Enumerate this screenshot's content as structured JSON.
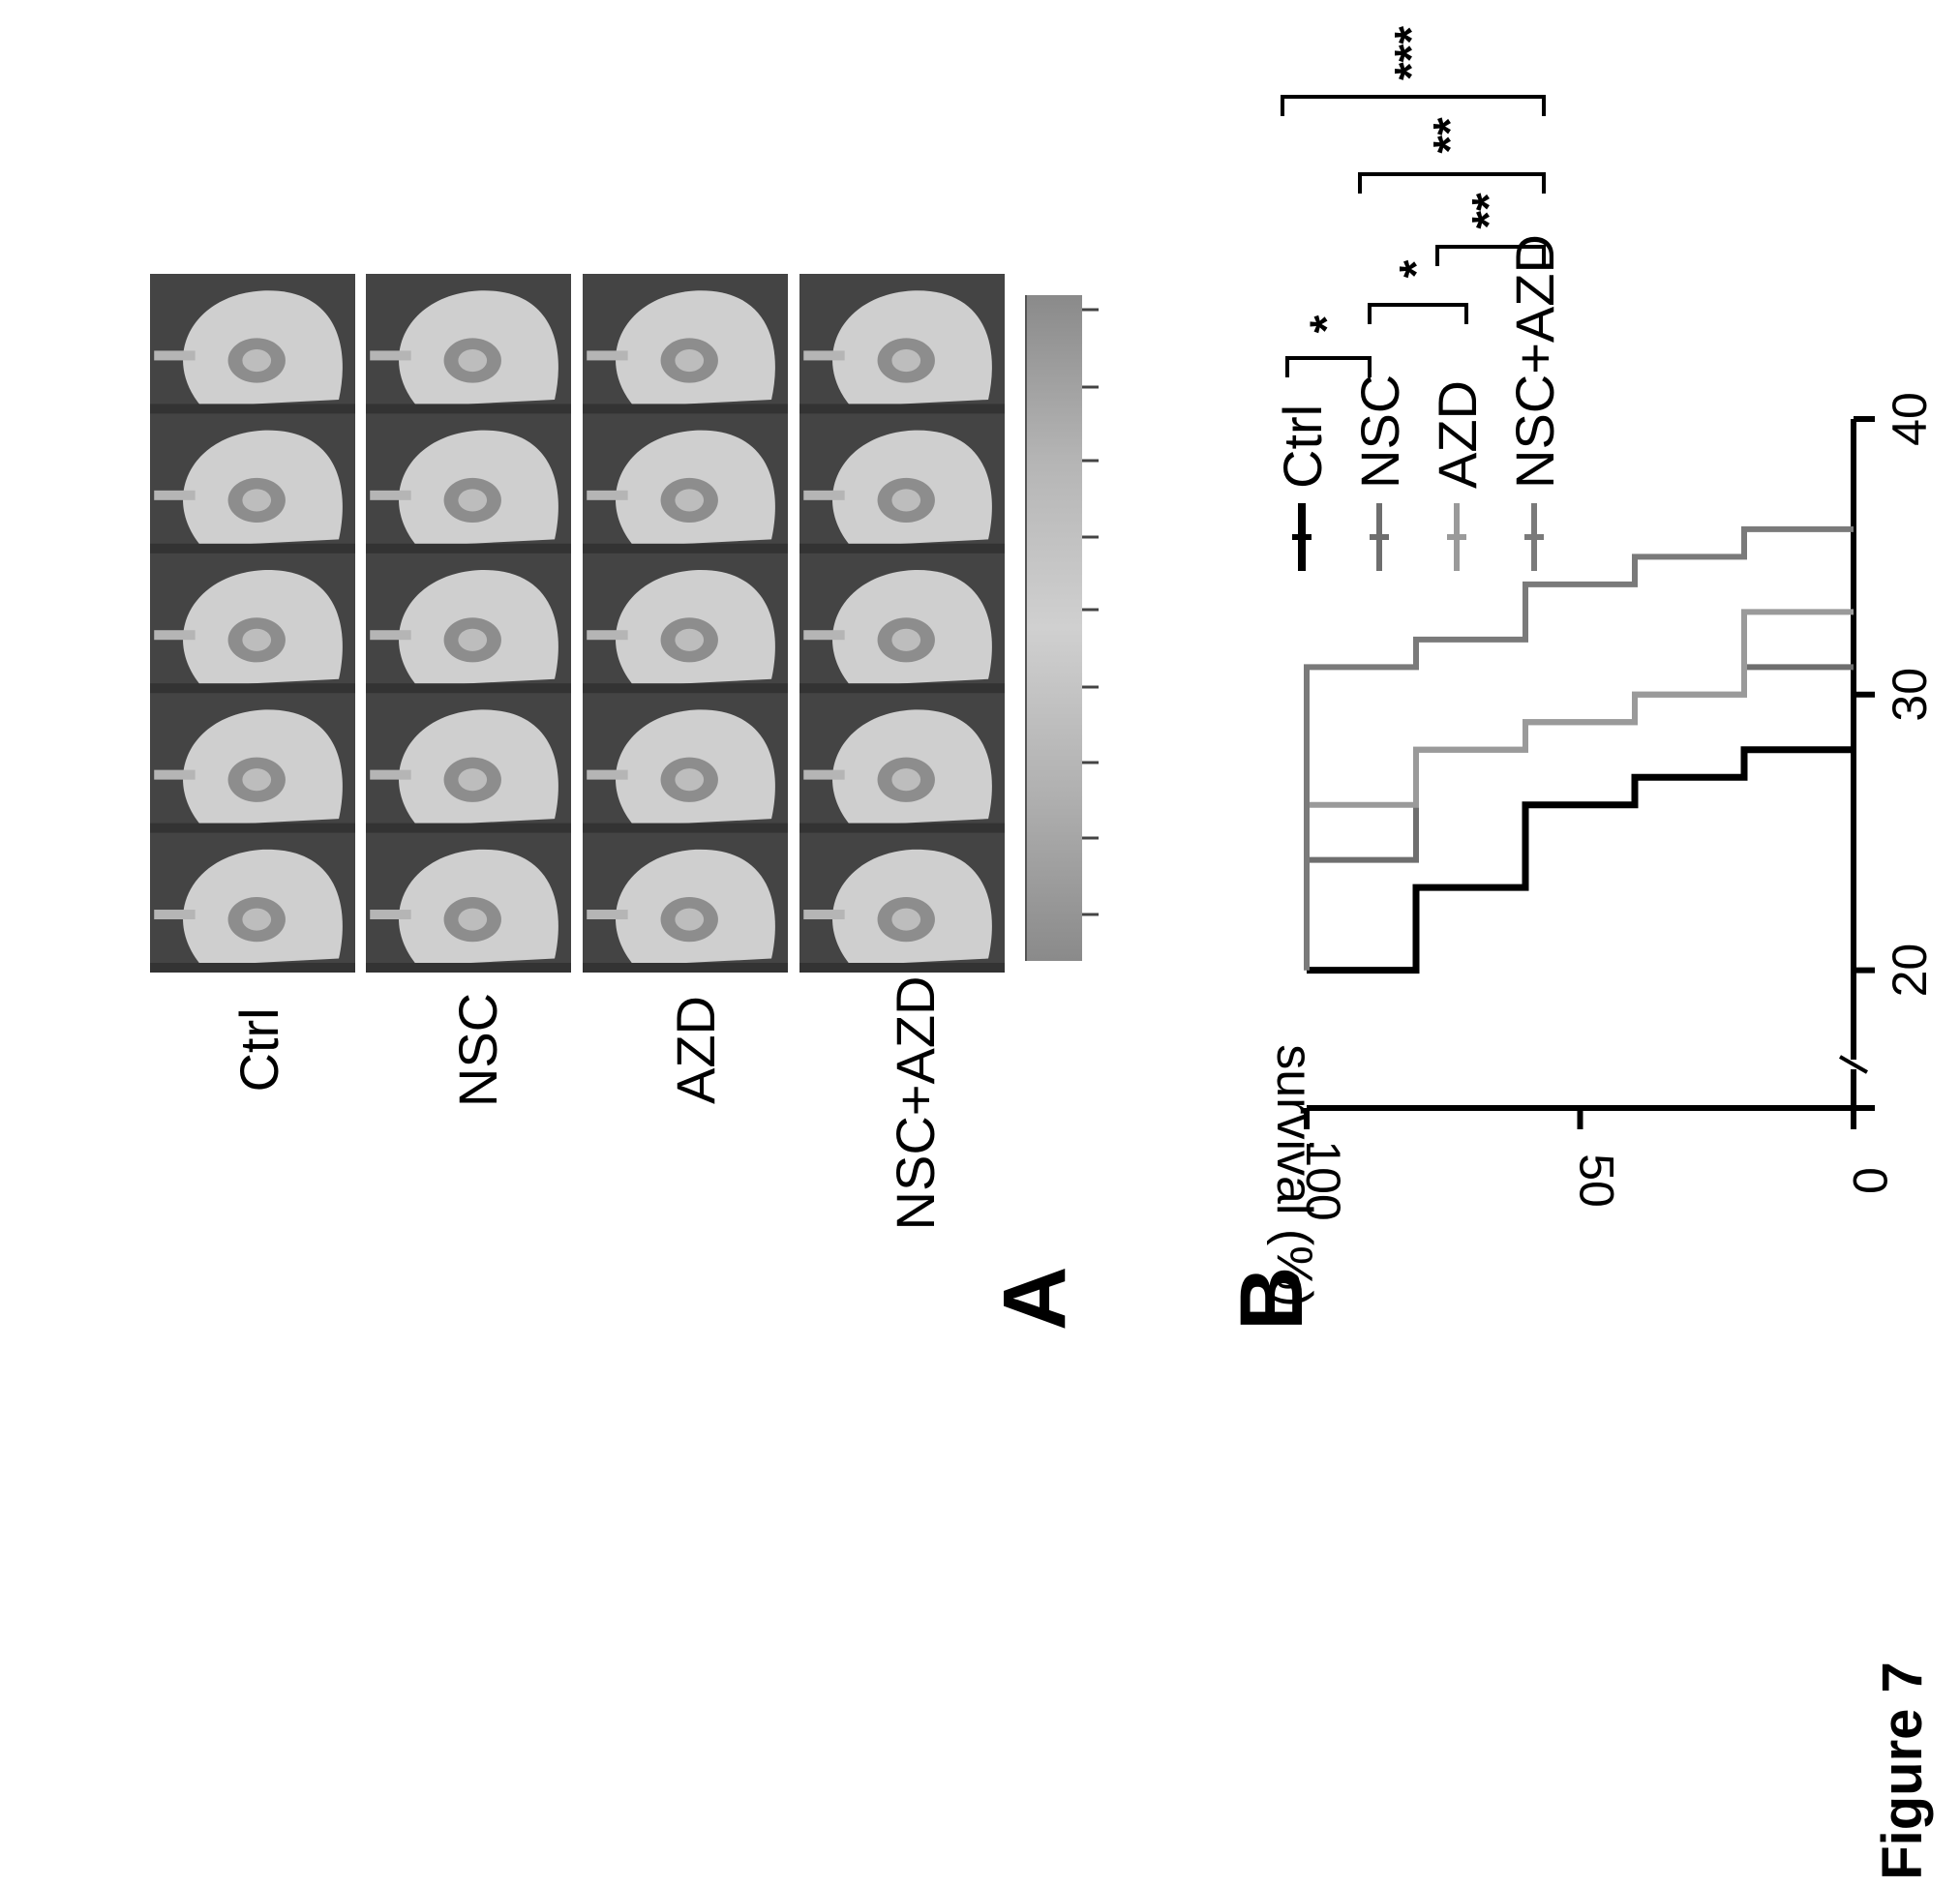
{
  "figure": {
    "caption": "Figure 7",
    "panel_a_label": "A",
    "panel_b_label": "B",
    "image_row_labels": [
      "Ctrl",
      "NSC",
      "AZD",
      "NSC+AZD"
    ],
    "image_columns_per_row": 5
  },
  "chart_data": {
    "type": "line",
    "step": true,
    "title": "",
    "xlabel": "",
    "ylabel": "survival (%)",
    "xlim": [
      15,
      40
    ],
    "ylim": [
      0,
      100
    ],
    "x_ticks": [
      "20",
      "30",
      "40"
    ],
    "y_ticks": [
      "0",
      "50",
      "100"
    ],
    "series": [
      {
        "name": "Ctrl",
        "color": "#000000",
        "points": [
          [
            20,
            100
          ],
          [
            20,
            80
          ],
          [
            23,
            80
          ],
          [
            23,
            60
          ],
          [
            26,
            60
          ],
          [
            26,
            40
          ],
          [
            27,
            40
          ],
          [
            27,
            20
          ],
          [
            28,
            20
          ],
          [
            28,
            0
          ]
        ]
      },
      {
        "name": "NSC",
        "color": "#6e6e6e",
        "points": [
          [
            20,
            100
          ],
          [
            24,
            100
          ],
          [
            24,
            80
          ],
          [
            28,
            80
          ],
          [
            28,
            60
          ],
          [
            29,
            60
          ],
          [
            29,
            40
          ],
          [
            30,
            40
          ],
          [
            30,
            20
          ],
          [
            31,
            20
          ],
          [
            31,
            0
          ]
        ]
      },
      {
        "name": "AZD",
        "color": "#9a9a9a",
        "points": [
          [
            20,
            100
          ],
          [
            26,
            100
          ],
          [
            26,
            80
          ],
          [
            28,
            80
          ],
          [
            28,
            60
          ],
          [
            29,
            60
          ],
          [
            29,
            40
          ],
          [
            30,
            40
          ],
          [
            30,
            20
          ],
          [
            33,
            20
          ],
          [
            33,
            0
          ]
        ]
      },
      {
        "name": "NSC+AZD",
        "color": "#7a7a7a",
        "points": [
          [
            20,
            100
          ],
          [
            31,
            100
          ],
          [
            31,
            80
          ],
          [
            32,
            80
          ],
          [
            32,
            60
          ],
          [
            34,
            60
          ],
          [
            34,
            40
          ],
          [
            35,
            40
          ],
          [
            35,
            20
          ],
          [
            36,
            20
          ],
          [
            36,
            0
          ]
        ]
      }
    ],
    "significance": [
      {
        "groups": [
          "Ctrl",
          "NSC"
        ],
        "label": "*"
      },
      {
        "groups": [
          "NSC",
          "AZD"
        ],
        "label": "*"
      },
      {
        "groups": [
          "AZD",
          "NSC+AZD"
        ],
        "label": "**"
      },
      {
        "groups": [
          "NSC",
          "NSC+AZD"
        ],
        "label": "**"
      },
      {
        "groups": [
          "Ctrl",
          "NSC+AZD"
        ],
        "label": "***"
      }
    ]
  }
}
